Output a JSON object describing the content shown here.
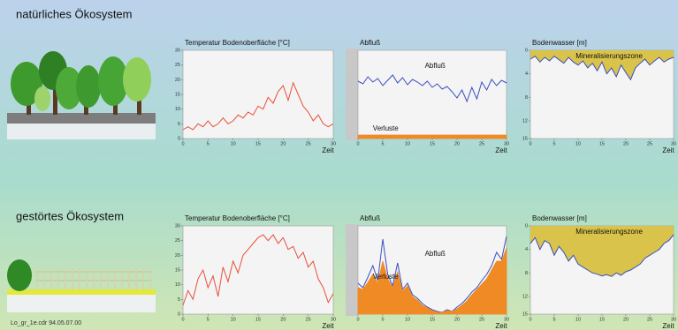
{
  "sections": [
    {
      "title": "natürliches Ökosystem"
    },
    {
      "title": "gestörtes Ökosystem"
    }
  ],
  "footer": "Lo_gr_1e.cdr 94.05.07.00",
  "chart_data": [
    {
      "type": "line",
      "title": "Temperatur Bodenoberfläche [°C]",
      "xlabel": "Zeit",
      "x": [
        0,
        1,
        2,
        3,
        4,
        5,
        6,
        7,
        8,
        9,
        10,
        11,
        12,
        13,
        14,
        15,
        16,
        17,
        18,
        19,
        20,
        21,
        22,
        23,
        24,
        25,
        26,
        27,
        28,
        29,
        30
      ],
      "series": [
        {
          "color": "#e8503a",
          "fill": "none",
          "values": [
            3,
            4,
            3,
            5,
            4,
            6,
            4,
            5,
            7,
            5,
            6,
            8,
            7,
            9,
            8,
            11,
            10,
            14,
            12,
            16,
            18,
            13,
            19,
            15,
            11,
            9,
            6,
            8,
            5,
            4,
            5
          ]
        }
      ],
      "xlim": [
        0,
        30
      ],
      "xticks": [
        0,
        5,
        10,
        15,
        20,
        25,
        30
      ],
      "ylim": [
        0,
        30
      ],
      "yticks": [
        0,
        5,
        10,
        15,
        20,
        25,
        30
      ]
    },
    {
      "type": "line",
      "title": "Abfluß",
      "xlabel": "Zeit",
      "x": [
        0,
        1,
        2,
        3,
        4,
        5,
        6,
        7,
        8,
        9,
        10,
        11,
        12,
        13,
        14,
        15,
        16,
        17,
        18,
        19,
        20,
        21,
        22,
        23,
        24,
        25,
        26,
        27,
        28,
        29,
        30
      ],
      "series": [
        {
          "name": "Abfluß",
          "color": "#3a4fc0",
          "fill": "none",
          "values": [
            6.5,
            6.2,
            7,
            6.4,
            6.8,
            6,
            6.6,
            7.2,
            6.3,
            6.9,
            6.1,
            6.7,
            6.4,
            6,
            6.5,
            5.8,
            6.2,
            5.6,
            5.9,
            5.3,
            4.6,
            5.5,
            4.2,
            5.8,
            4.5,
            6.4,
            5.5,
            6.7,
            6,
            6.6,
            6.3
          ]
        },
        {
          "name": "Verluste",
          "color": "#f08a24",
          "fill": "below",
          "values": [
            0.4,
            0.4,
            0.4,
            0.4,
            0.4,
            0.4,
            0.4,
            0.4,
            0.4,
            0.4,
            0.4,
            0.4,
            0.4,
            0.4,
            0.4,
            0.4,
            0.4,
            0.4,
            0.4,
            0.4,
            0.4,
            0.4,
            0.4,
            0.4,
            0.4,
            0.4,
            0.4,
            0.4,
            0.4,
            0.4,
            0.4
          ]
        }
      ],
      "xlim": [
        0,
        30
      ],
      "xticks": [
        0,
        5,
        10,
        15,
        20,
        25,
        30
      ],
      "ylim": [
        0,
        10
      ]
    },
    {
      "type": "line",
      "title": "Bodenwasser [m]",
      "xlabel": "Zeit",
      "annotation": "Mineralisierungszone",
      "x": [
        0,
        1,
        2,
        3,
        4,
        5,
        6,
        7,
        8,
        9,
        10,
        11,
        12,
        13,
        14,
        15,
        16,
        17,
        18,
        19,
        20,
        21,
        22,
        23,
        24,
        25,
        26,
        27,
        28,
        29,
        30
      ],
      "series": [
        {
          "color": "#3a4fc0",
          "fill": "above",
          "fill_color": "#d9c34a",
          "values": [
            1.5,
            1,
            2,
            1.2,
            1.8,
            1,
            1.6,
            2.2,
            1.2,
            2,
            2.5,
            1.8,
            3,
            2.2,
            3.5,
            2,
            4,
            3,
            4.5,
            2.5,
            3.8,
            5,
            3,
            2.2,
            1.5,
            2.5,
            1.8,
            1.2,
            2,
            1.5,
            1.2
          ]
        }
      ],
      "xlim": [
        0,
        30
      ],
      "xticks": [
        0,
        5,
        10,
        15,
        20,
        25,
        30
      ],
      "ylim": [
        15,
        0
      ],
      "yticks": [
        0,
        4,
        8,
        12,
        15
      ]
    },
    {
      "type": "line",
      "title": "Temperatur Bodenoberfläche [°C]",
      "xlabel": "Zeit",
      "x": [
        0,
        1,
        2,
        3,
        4,
        5,
        6,
        7,
        8,
        9,
        10,
        11,
        12,
        13,
        14,
        15,
        16,
        17,
        18,
        19,
        20,
        21,
        22,
        23,
        24,
        25,
        26,
        27,
        28,
        29,
        30
      ],
      "series": [
        {
          "color": "#e8503a",
          "fill": "none",
          "values": [
            3,
            8,
            5,
            12,
            15,
            9,
            13,
            6,
            16,
            11,
            18,
            14,
            20,
            22,
            24,
            26,
            27,
            25,
            27,
            24,
            26,
            22,
            23,
            19,
            21,
            16,
            18,
            12,
            9,
            4,
            7
          ]
        }
      ],
      "xlim": [
        0,
        30
      ],
      "xticks": [
        0,
        5,
        10,
        15,
        20,
        25,
        30
      ],
      "ylim": [
        0,
        30
      ],
      "yticks": [
        0,
        5,
        10,
        15,
        20,
        25,
        30
      ]
    },
    {
      "type": "line",
      "title": "Abfluß",
      "xlabel": "Zeit",
      "x": [
        0,
        1,
        2,
        3,
        4,
        5,
        6,
        7,
        8,
        9,
        10,
        11,
        12,
        13,
        14,
        15,
        16,
        17,
        18,
        19,
        20,
        21,
        22,
        23,
        24,
        25,
        26,
        27,
        28,
        29,
        30
      ],
      "series": [
        {
          "name": "Abfluß",
          "color": "#3a4fc0",
          "fill": "none",
          "values": [
            3.5,
            3,
            4.2,
            5.5,
            3.8,
            8.5,
            4.5,
            3.2,
            5.8,
            2.8,
            3.5,
            2.2,
            1.8,
            1.2,
            0.8,
            0.5,
            0.3,
            0.2,
            0.5,
            0.3,
            0.8,
            1.2,
            1.8,
            2.5,
            3,
            3.8,
            4.5,
            5.5,
            7,
            6.2,
            8.8
          ]
        },
        {
          "name": "Verluste",
          "color": "#f08a24",
          "fill": "below",
          "values": [
            3,
            2.8,
            3.6,
            4.5,
            3.5,
            6,
            4,
            3,
            4.8,
            2.6,
            3.2,
            2,
            1.6,
            1,
            0.7,
            0.4,
            0.2,
            0.2,
            0.4,
            0.3,
            0.6,
            1,
            1.5,
            2.2,
            2.8,
            3.4,
            4,
            5,
            6,
            6,
            7.5
          ]
        }
      ],
      "xlim": [
        0,
        30
      ],
      "xticks": [
        0,
        5,
        10,
        15,
        20,
        25,
        30
      ],
      "ylim": [
        0,
        10
      ]
    },
    {
      "type": "line",
      "title": "Bodenwasser [m]",
      "xlabel": "Zeit",
      "annotation": "Mineralisierungszone",
      "x": [
        0,
        1,
        2,
        3,
        4,
        5,
        6,
        7,
        8,
        9,
        10,
        11,
        12,
        13,
        14,
        15,
        16,
        17,
        18,
        19,
        20,
        21,
        22,
        23,
        24,
        25,
        26,
        27,
        28,
        29,
        30
      ],
      "series": [
        {
          "color": "#3a4fc0",
          "fill": "above",
          "fill_color": "#d9c34a",
          "values": [
            3,
            2,
            4,
            2.5,
            3,
            5,
            3.5,
            4.5,
            6,
            5,
            6.5,
            7,
            7.5,
            8,
            8.2,
            8.5,
            8.3,
            8.6,
            8,
            8.4,
            7.8,
            7.5,
            7,
            6.5,
            5.5,
            5,
            4.5,
            4,
            3,
            2.5,
            1.5
          ]
        }
      ],
      "xlim": [
        0,
        30
      ],
      "xticks": [
        0,
        5,
        10,
        15,
        20,
        25,
        30
      ],
      "ylim": [
        15,
        0
      ],
      "yticks": [
        0,
        4,
        8,
        12,
        15
      ]
    }
  ]
}
